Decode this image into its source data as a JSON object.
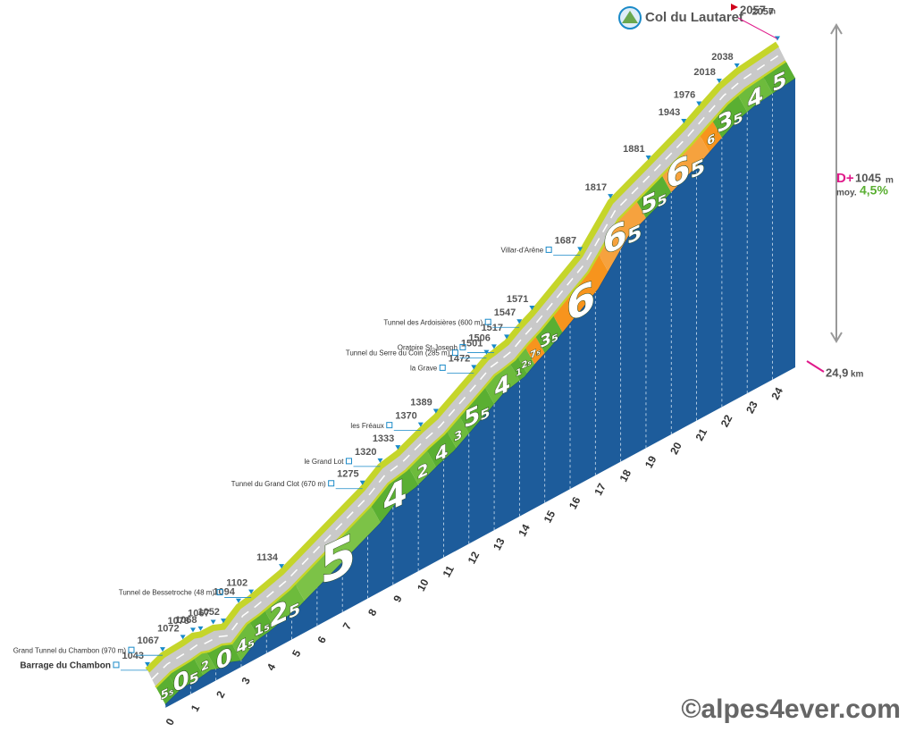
{
  "chart_data": {
    "type": "elevation-profile",
    "title": "Col du Lautaret",
    "unit": "m",
    "distance_unit": "km",
    "points": {
      "x": [
        0,
        0.6,
        1.4,
        1.8,
        2.1,
        2.6,
        3.0,
        3.6,
        4.1,
        5.3,
        8.5,
        9.2,
        9.9,
        10.8,
        11.4,
        12.9,
        13.4,
        13.7,
        14.2,
        14.7,
        15.2,
        17.1,
        18.3,
        19.8,
        21.2,
        21.8,
        22.6,
        23.3,
        24.9
      ],
      "values": [
        1043,
        1067,
        1072,
        1078,
        1068,
        1067,
        1052,
        1094,
        1102,
        1134,
        1275,
        1320,
        1333,
        1370,
        1389,
        1472,
        1501,
        1506,
        1517,
        1547,
        1571,
        1687,
        1817,
        1881,
        1943,
        1976,
        2018,
        2038,
        2057
      ],
      "places": [
        "Barrage du Chambon",
        "Grand Tunnel du Chambon (970 m)",
        null,
        null,
        null,
        null,
        null,
        null,
        "Tunnel de Bessetroche (48 m)",
        null,
        "Tunnel du Grand Clot (670 m)",
        "le Grand Lot",
        null,
        "les Fréaux",
        null,
        "la Grave",
        "Tunnel du Serre du Coin (285 m)",
        "Oratoire St-Joseph",
        null,
        "Tunnel des Ardoisières (600 m)",
        null,
        "Villar-d'Arêne",
        null,
        null,
        null,
        null,
        null,
        null,
        null
      ]
    },
    "gradients": {
      "bins": [
        0,
        0.5,
        1.5,
        2,
        3,
        3.7,
        4.3,
        5.5,
        8.5,
        10,
        10.7,
        11.5,
        12,
        13,
        14,
        14.3,
        14.6,
        15,
        15.7,
        17.5,
        19,
        20,
        21.5,
        22,
        23,
        24,
        24.9
      ],
      "values": [
        5.5,
        0.5,
        2,
        0,
        4.5,
        1.5,
        2.5,
        5,
        4,
        2,
        4,
        3,
        5.5,
        4,
        1,
        2.5,
        7.5,
        3.5,
        6,
        6.5,
        5.5,
        6.5,
        6,
        3.5,
        4,
        5
      ],
      "value_labels": [
        "5₅",
        "0₅",
        "2",
        "0",
        "4₅",
        "1₅",
        "2₅",
        "5",
        "4",
        "2",
        "4",
        "3",
        "5₅",
        "4",
        "1",
        "2₅",
        "7₅",
        "3₅",
        "6",
        "6₅",
        "5₅",
        "6₅",
        "6",
        "3₅",
        "4",
        "5"
      ],
      "colors": [
        "#5aaf32",
        "#5aaf32",
        "#6dbb3c",
        "#5aaf32",
        "#6dbb3c",
        "#5aaf32",
        "#6dbb3c",
        "#7cc247",
        "#5aaf32",
        "#6dbb3c",
        "#5aaf32",
        "#6dbb3c",
        "#5aaf32",
        "#6dbb3c",
        "#5aaf32",
        "#6dbb3c",
        "#f7941d",
        "#5aaf32",
        "#f7941d",
        "#f6a23e",
        "#5aaf32",
        "#f6a23e",
        "#f7941d",
        "#5aaf32",
        "#6dbb3c",
        "#5aaf32"
      ]
    },
    "xlim": [
      0,
      24.9
    ],
    "xticks": [
      0,
      1,
      2,
      3,
      4,
      5,
      6,
      7,
      8,
      9,
      10,
      11,
      12,
      13,
      14,
      15,
      16,
      17,
      18,
      19,
      20,
      21,
      22,
      23,
      24
    ],
    "distance_label": "24,9",
    "climb_label": "D+",
    "climb": "1045",
    "average_label": "moy.",
    "average": "4,5%",
    "credit": "©alpes4ever.com"
  }
}
